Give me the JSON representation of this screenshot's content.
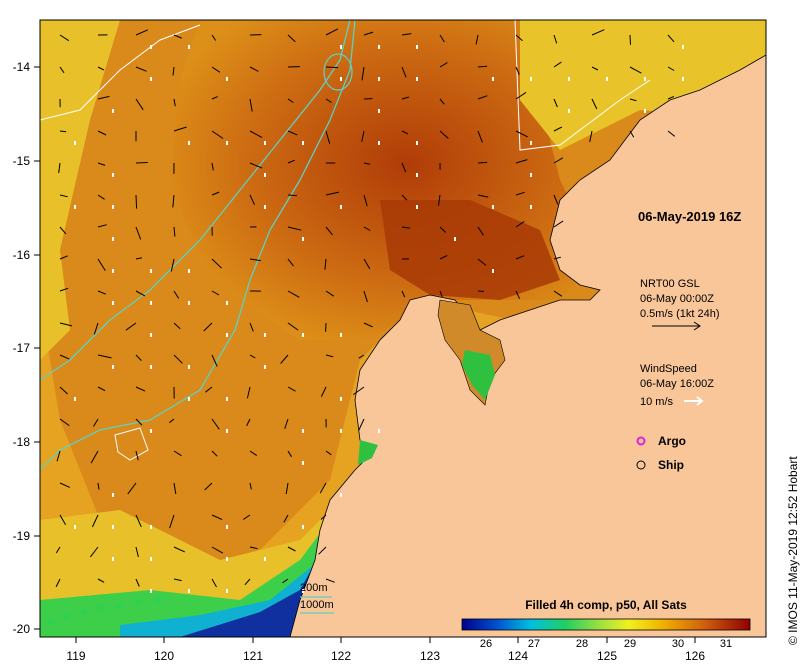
{
  "date_label": "06-May-2019 16Z",
  "currents": {
    "title": "NRT00 GSL",
    "time": "06-May 00:00Z",
    "scale": "0.5m/s (1kt 24h)"
  },
  "wind": {
    "title": "WindSpeed",
    "time": "06-May 16:00Z",
    "scale": "10 m/s"
  },
  "legend": {
    "argo": "Argo",
    "ship": "Ship",
    "contour_200": "200m",
    "contour_1000": "1000m"
  },
  "colorbar": {
    "title": "Filled 4h comp, p50, All Sats",
    "ticks": [
      "26",
      "27",
      "28",
      "29",
      "30",
      "31"
    ],
    "range": [
      25.5,
      31.5
    ]
  },
  "axes": {
    "x_ticks": [
      "119",
      "120",
      "121",
      "122",
      "123",
      "124",
      "125",
      "126"
    ],
    "y_ticks": [
      "-14",
      "-15",
      "-16",
      "-17",
      "-18",
      "-19",
      "-20"
    ]
  },
  "credit": "© IMOS 11-May-2019 12:52 Hobart",
  "colors": {
    "land": "#f9c69a",
    "warm_sst": "#b84a0c",
    "mid_sst": "#e09a1c",
    "cool_sst": "#1ec23c",
    "contour": "#5fd0c0",
    "argo": "#e020e0"
  }
}
